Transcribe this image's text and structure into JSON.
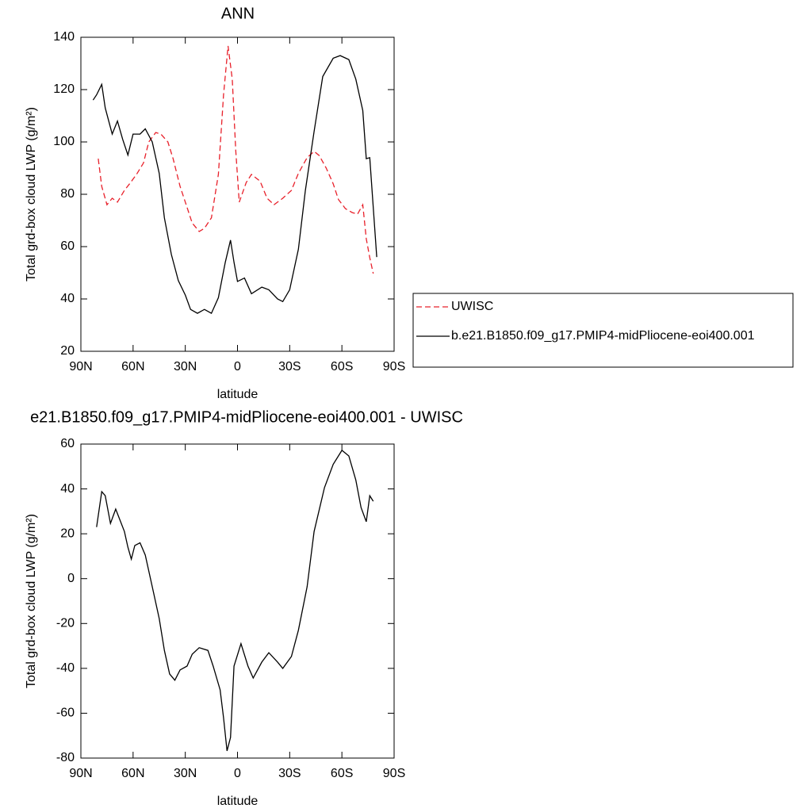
{
  "chart_data": [
    {
      "type": "line",
      "title": "ANN",
      "xlabel": "latitude",
      "ylabel": "Total grd-box cloud LWP (g/m²)",
      "xlim": [
        90,
        -90
      ],
      "xticks": [
        {
          "value": 90,
          "label": "90N"
        },
        {
          "value": 60,
          "label": "60N"
        },
        {
          "value": 30,
          "label": "30N"
        },
        0,
        {
          "value": -30,
          "label": "30S"
        },
        {
          "value": -60,
          "label": "60S"
        },
        {
          "value": -90,
          "label": "90S"
        }
      ],
      "ylim": [
        20,
        140
      ],
      "yticks": [
        20,
        40,
        60,
        80,
        100,
        120,
        140
      ],
      "legend": "right",
      "series": [
        {
          "name": "UWISC",
          "color": "#e8202a",
          "dash": true,
          "x": [
            80,
            78,
            75,
            72,
            69,
            65,
            62,
            58,
            54,
            51,
            47,
            44,
            40,
            37,
            33,
            30,
            26,
            22,
            19,
            15,
            11,
            8,
            5.4,
            3,
            1,
            -1,
            -5,
            -8,
            -13,
            -17,
            -21,
            -26,
            -31,
            -35,
            -40,
            -44,
            -47,
            -51,
            -55,
            -58,
            -62,
            -66,
            -69,
            -72,
            -74,
            -76,
            -78
          ],
          "values": [
            93.6,
            83,
            76,
            78.5,
            77,
            81.5,
            84,
            87.6,
            92,
            100,
            103.6,
            103,
            100,
            93.6,
            83,
            77,
            69,
            65.8,
            67,
            71,
            87.6,
            118,
            136.7,
            124,
            96.7,
            77,
            84.5,
            87.6,
            85,
            78.5,
            76,
            78.5,
            81.5,
            88,
            94,
            96.4,
            94.8,
            90,
            84,
            78,
            74.5,
            73,
            72.4,
            76,
            63,
            55.8,
            49.7
          ]
        },
        {
          "name": "b.e21.B1850.f09_g17.PMIP4-midPliocene-eoi400.001",
          "color": "#000000",
          "dash": false,
          "x": [
            83,
            81,
            78,
            76,
            72,
            69,
            66,
            63,
            60,
            56,
            53,
            49,
            45,
            42,
            38,
            34,
            30,
            27,
            23,
            19,
            15,
            11,
            7,
            4,
            2,
            0,
            -4,
            -8,
            -14,
            -18,
            -23,
            -26,
            -30,
            -35,
            -39,
            -44,
            -49,
            -55,
            -59,
            -64,
            -68,
            -72,
            -74,
            -76,
            -78,
            -80
          ],
          "values": [
            116,
            118,
            122,
            113,
            103,
            108,
            101,
            95,
            103,
            103,
            105,
            100,
            88,
            71,
            57,
            47,
            41.5,
            36,
            34.5,
            36,
            34.5,
            40.5,
            54,
            62.5,
            54,
            46.7,
            48,
            42,
            44.5,
            43.5,
            40,
            39,
            43.5,
            59,
            81.5,
            104,
            125,
            132,
            133,
            131.5,
            124,
            112,
            93.6,
            94,
            75,
            56
          ]
        }
      ]
    },
    {
      "type": "line",
      "title": "e21.B1850.f09_g17.PMIP4-midPliocene-eoi400.001 - UWISC",
      "xlabel": "latitude",
      "ylabel": "Total grd-box cloud LWP (g/m²)",
      "xlim": [
        90,
        -90
      ],
      "xticks": [
        {
          "value": 90,
          "label": "90N"
        },
        {
          "value": 60,
          "label": "60N"
        },
        {
          "value": 30,
          "label": "30N"
        },
        0,
        {
          "value": -30,
          "label": "30S"
        },
        {
          "value": -60,
          "label": "60S"
        },
        {
          "value": -90,
          "label": "90S"
        }
      ],
      "ylim": [
        -80,
        60
      ],
      "yticks": [
        -80,
        -60,
        -40,
        -20,
        0,
        20,
        40,
        60
      ],
      "color": "#000000",
      "x": [
        81,
        78,
        76,
        73,
        70,
        65,
        63,
        61,
        59,
        56,
        53,
        49,
        45,
        42,
        39,
        36,
        33,
        29,
        26,
        22,
        17,
        14,
        10,
        8,
        6,
        4,
        2,
        -2,
        -6,
        -9,
        -14,
        -18,
        -23,
        -26,
        -31,
        -35,
        -40,
        -44,
        -50,
        -55,
        -60,
        -64,
        -68,
        -71,
        -74,
        -76,
        -78
      ],
      "values": [
        23,
        38.8,
        37,
        24.6,
        31,
        21,
        14,
        8.7,
        14.8,
        16,
        10.5,
        -3.6,
        -17.8,
        -32,
        -42.5,
        -45.3,
        -40.7,
        -39,
        -33.7,
        -30.8,
        -32,
        -39,
        -49.6,
        -62,
        -76.8,
        -70.8,
        -39,
        -29,
        -39,
        -44.3,
        -37.2,
        -33,
        -37.2,
        -40,
        -34.7,
        -23,
        -3.6,
        21,
        40.6,
        51,
        57.2,
        54.7,
        44,
        31.7,
        25.4,
        37,
        34.5
      ]
    }
  ]
}
